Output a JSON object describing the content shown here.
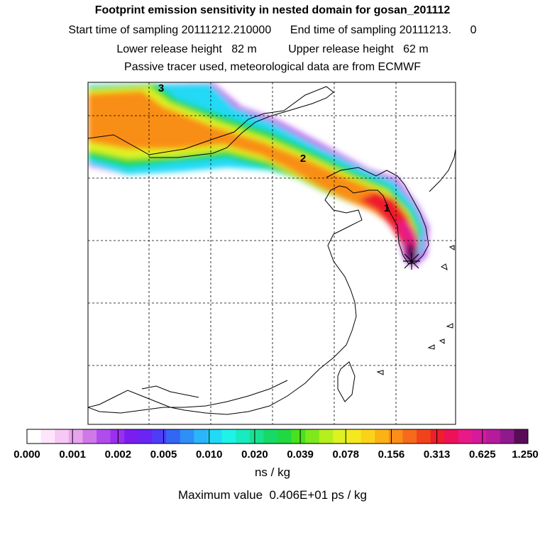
{
  "header": {
    "title": "Footprint emission sensitivity in nested domain for gosan_201112",
    "sampling_line": "Start time of sampling 20111212.210000      End time of sampling 20111213.      0",
    "release_line": "Lower release height   82 m          Upper release height   62 m",
    "tracer_line": "Passive tracer used, meteorological data are from ECMWF"
  },
  "map": {
    "markers": [
      "1",
      "2",
      "3"
    ],
    "receptor_icon": "star-icon"
  },
  "colorbar": {
    "colors": [
      "#ffffff",
      "#fde6fb",
      "#f6c8f4",
      "#e9a4ee",
      "#cf78e8",
      "#b04cec",
      "#9a2fef",
      "#7a1ef0",
      "#6a25f5",
      "#4d3ef5",
      "#3366f5",
      "#2e8ff7",
      "#2ab6f8",
      "#22d9f6",
      "#1ff3e8",
      "#1aeabf",
      "#18e290",
      "#17d968",
      "#21d842",
      "#49e11f",
      "#7fe81b",
      "#b5ef1d",
      "#dff221",
      "#f5e81f",
      "#fbd21a",
      "#fbb216",
      "#f98e19",
      "#f56a1c",
      "#f2421c",
      "#ee1e2c",
      "#ec1159",
      "#e81a87",
      "#d51a9e",
      "#b61b9c",
      "#8f1a8e",
      "#5a0d57"
    ],
    "tick_labels": [
      "0.000",
      "0.001",
      "0.002",
      "0.005",
      "0.010",
      "0.020",
      "0.039",
      "0.078",
      "0.156",
      "0.313",
      "0.625",
      "1.250"
    ],
    "unit": "ns / kg"
  },
  "footer": {
    "max_value": "Maximum value  0.406E+01 ps / kg"
  }
}
